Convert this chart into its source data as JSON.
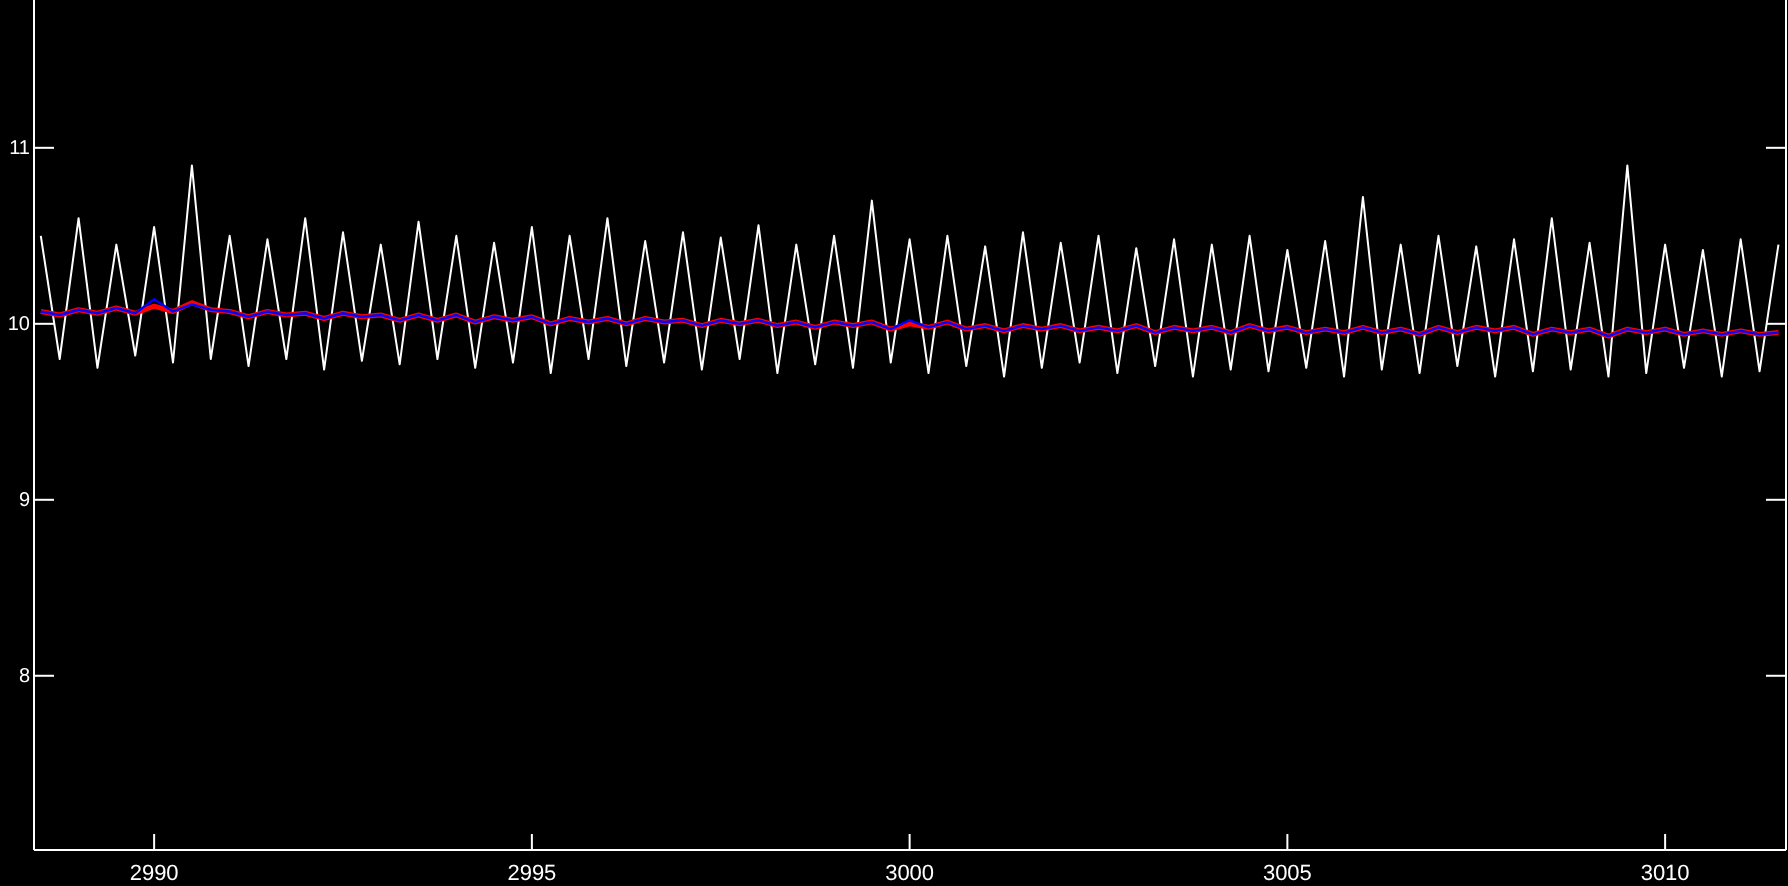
{
  "chart_data": {
    "type": "line",
    "xlim": [
      2988.41,
      3011.6
    ],
    "ylim": [
      7.01,
      11.84
    ],
    "xticks": [
      2990,
      2995,
      3000,
      3005,
      3010
    ],
    "yticks": [
      8,
      9,
      10,
      11
    ],
    "grid": false,
    "marker": "none",
    "line_style": "solid",
    "x": [
      2988.5,
      2988.75,
      2989,
      2989.25,
      2989.5,
      2989.75,
      2990,
      2990.25,
      2990.5,
      2990.75,
      2991,
      2991.25,
      2991.5,
      2991.75,
      2992,
      2992.25,
      2992.5,
      2992.75,
      2993,
      2993.25,
      2993.5,
      2993.75,
      2994,
      2994.25,
      2994.5,
      2994.75,
      2995,
      2995.25,
      2995.5,
      2995.75,
      2996,
      2996.25,
      2996.5,
      2996.75,
      2997,
      2997.25,
      2997.5,
      2997.75,
      2998,
      2998.25,
      2998.5,
      2998.75,
      2999,
      2999.25,
      2999.5,
      2999.75,
      3000,
      3000.25,
      3000.5,
      3000.75,
      3001,
      3001.25,
      3001.5,
      3001.75,
      3002,
      3002.25,
      3002.5,
      3002.75,
      3003,
      3003.25,
      3003.5,
      3003.75,
      3004,
      3004.25,
      3004.5,
      3004.75,
      3005,
      3005.25,
      3005.5,
      3005.75,
      3006,
      3006.25,
      3006.5,
      3006.75,
      3007,
      3007.25,
      3007.5,
      3007.75,
      3008,
      3008.25,
      3008.5,
      3008.75,
      3009,
      3009.25,
      3009.5,
      3009.75,
      3010,
      3010.25,
      3010.5,
      3010.75,
      3011,
      3011.25,
      3011.5
    ],
    "series": [
      {
        "color": "#ffffff",
        "values": [
          10.5,
          9.8,
          10.6,
          9.75,
          10.45,
          9.82,
          10.55,
          9.78,
          10.9,
          9.8,
          10.5,
          9.76,
          10.48,
          9.8,
          10.6,
          9.74,
          10.52,
          9.79,
          10.45,
          9.77,
          10.58,
          9.8,
          10.5,
          9.75,
          10.46,
          9.78,
          10.55,
          9.72,
          10.5,
          9.8,
          10.6,
          9.76,
          10.47,
          9.78,
          10.52,
          9.74,
          10.49,
          9.8,
          10.56,
          9.72,
          10.45,
          9.77,
          10.5,
          9.75,
          10.7,
          9.78,
          10.48,
          9.72,
          10.5,
          9.76,
          10.44,
          9.7,
          10.52,
          9.75,
          10.46,
          9.78,
          10.5,
          9.72,
          10.43,
          9.76,
          10.48,
          9.7,
          10.45,
          9.74,
          10.5,
          9.73,
          10.42,
          9.75,
          10.47,
          9.7,
          10.72,
          9.74,
          10.45,
          9.72,
          10.5,
          9.76,
          10.44,
          9.7,
          10.48,
          9.73,
          10.6,
          9.74,
          10.46,
          9.7,
          10.9,
          9.72,
          10.45,
          9.75,
          10.42,
          9.7,
          10.48,
          9.73,
          10.45
        ]
      },
      {
        "color": "#ff0000",
        "values": [
          10.07,
          10.05,
          10.08,
          10.06,
          10.09,
          10.06,
          10.1,
          10.07,
          10.12,
          10.08,
          10.07,
          10.04,
          10.07,
          10.05,
          10.06,
          10.03,
          10.06,
          10.04,
          10.05,
          10.02,
          10.05,
          10.02,
          10.05,
          10.01,
          10.04,
          10.02,
          10.04,
          10.0,
          10.03,
          10.01,
          10.03,
          10.0,
          10.03,
          10.01,
          10.02,
          9.99,
          10.02,
          10.0,
          10.02,
          9.99,
          10.01,
          9.98,
          10.01,
          9.99,
          10.01,
          9.97,
          10.0,
          9.98,
          10.01,
          9.97,
          9.99,
          9.96,
          9.99,
          9.97,
          9.99,
          9.96,
          9.98,
          9.96,
          9.99,
          9.95,
          9.98,
          9.96,
          9.98,
          9.95,
          9.99,
          9.96,
          9.98,
          9.95,
          9.97,
          9.95,
          9.98,
          9.95,
          9.97,
          9.94,
          9.98,
          9.95,
          9.98,
          9.96,
          9.98,
          9.94,
          9.97,
          9.95,
          9.97,
          9.93,
          9.97,
          9.95,
          9.97,
          9.94,
          9.96,
          9.94,
          9.96,
          9.94,
          9.95
        ]
      },
      {
        "color": "#0000ff",
        "values": [
          10.07,
          10.05,
          10.08,
          10.06,
          10.09,
          10.06,
          10.14,
          10.07,
          10.11,
          10.08,
          10.07,
          10.04,
          10.07,
          10.05,
          10.06,
          10.03,
          10.06,
          10.04,
          10.05,
          10.02,
          10.05,
          10.02,
          10.05,
          10.01,
          10.04,
          10.02,
          10.04,
          10.0,
          10.03,
          10.01,
          10.03,
          10.0,
          10.03,
          10.01,
          10.02,
          9.99,
          10.02,
          10.0,
          10.02,
          9.99,
          10.01,
          9.98,
          10.01,
          9.99,
          10.01,
          9.97,
          10.02,
          9.98,
          10.01,
          9.97,
          9.99,
          9.96,
          9.99,
          9.97,
          9.99,
          9.96,
          9.98,
          9.96,
          9.99,
          9.95,
          9.98,
          9.96,
          9.98,
          9.95,
          9.99,
          9.96,
          9.98,
          9.95,
          9.97,
          9.95,
          9.98,
          9.95,
          9.97,
          9.94,
          9.98,
          9.95,
          9.98,
          9.96,
          9.98,
          9.94,
          9.97,
          9.95,
          9.97,
          9.93,
          9.97,
          9.95,
          9.97,
          9.94,
          9.96,
          9.94,
          9.96,
          9.94,
          9.95
        ]
      }
    ]
  }
}
